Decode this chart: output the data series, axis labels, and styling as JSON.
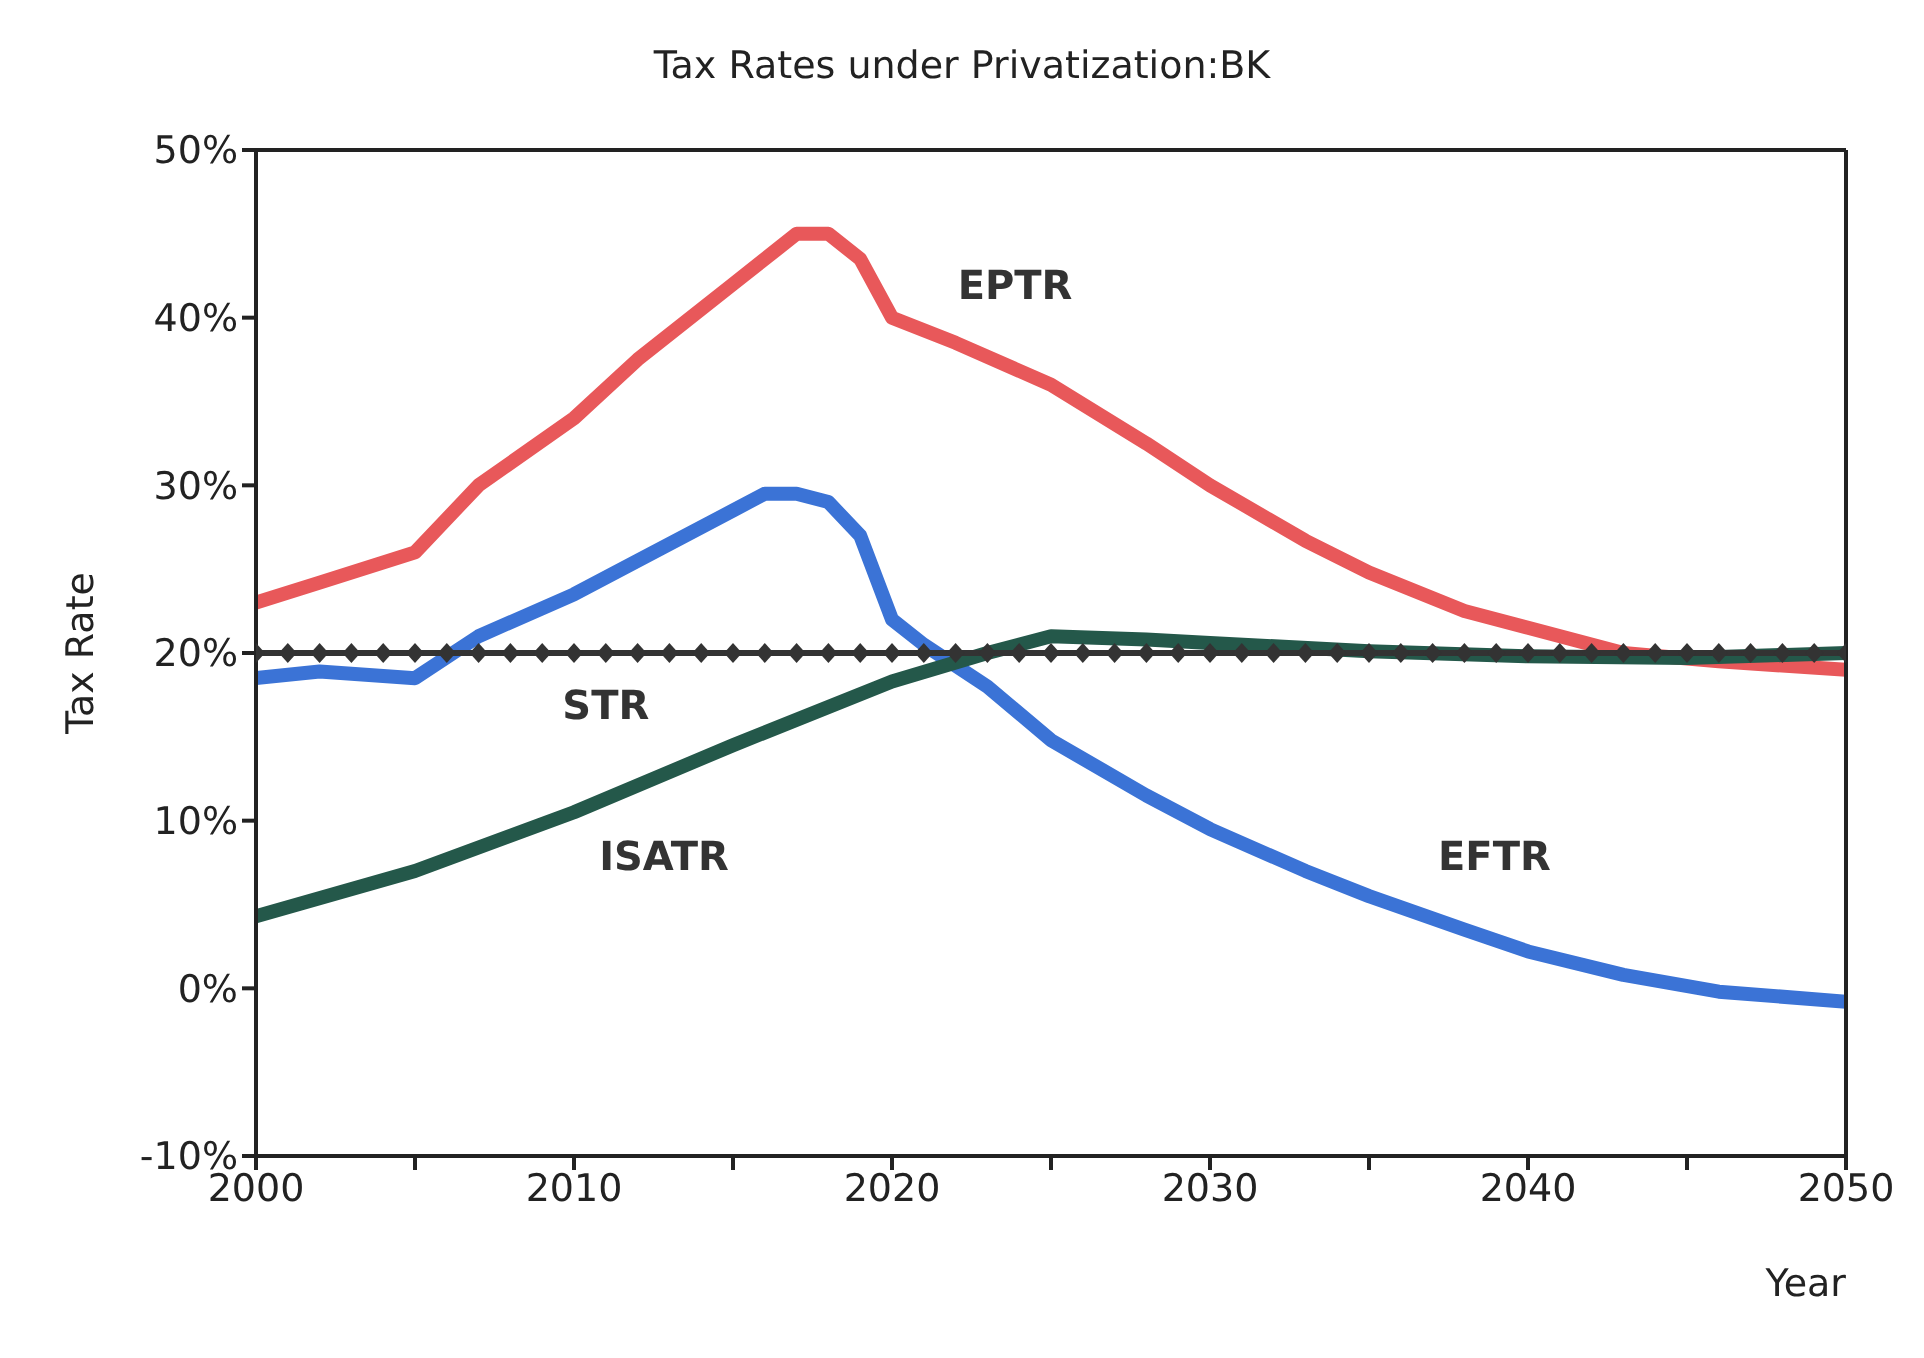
{
  "chart_data": {
    "type": "line",
    "title": "Tax Rates under Privatization:BK",
    "xlabel": "Year",
    "ylabel": "Tax Rate",
    "xlim": [
      2000,
      2050
    ],
    "xticks": [
      2000,
      {
        "value": 2005,
        "label": null
      },
      2010,
      {
        "value": 2015,
        "label": null
      },
      2020,
      {
        "value": 2025,
        "label": null
      },
      2030,
      {
        "value": 2035,
        "label": null
      },
      2040,
      {
        "value": 2045,
        "label": null
      },
      2050
    ],
    "ylim": [
      -10,
      50
    ],
    "yticks": [
      {
        "value": -10,
        "label": "-10%"
      },
      {
        "value": 0,
        "label": "0%"
      },
      {
        "value": 10,
        "label": "10%"
      },
      {
        "value": 20,
        "label": "20%"
      },
      {
        "value": 30,
        "label": "30%"
      },
      {
        "value": 40,
        "label": "40%"
      },
      {
        "value": 50,
        "label": "50%"
      }
    ],
    "grid": false,
    "legend": false,
    "marker": "none",
    "line_style": "solid",
    "series": [
      {
        "name": "EPTR",
        "color": "#e8585a",
        "x": [
          2000,
          2002,
          2005,
          2007,
          2010,
          2012,
          2015,
          2017,
          2018,
          2019,
          2020,
          2022,
          2025,
          2028,
          2030,
          2033,
          2035,
          2038,
          2040,
          2043,
          2046,
          2050
        ],
        "values": [
          23,
          24.2,
          26,
          30,
          34,
          37.5,
          42,
          45,
          45,
          43.5,
          40,
          38.5,
          36,
          32.5,
          30,
          26.7,
          24.8,
          22.5,
          21.5,
          20,
          19.5,
          19
        ]
      },
      {
        "name": "EFTR",
        "color": "#3b73d6",
        "x": [
          2000,
          2002,
          2005,
          2007,
          2010,
          2012,
          2015,
          2016,
          2017,
          2018,
          2019,
          2020,
          2021,
          2023,
          2025,
          2028,
          2030,
          2033,
          2035,
          2038,
          2040,
          2043,
          2046,
          2050
        ],
        "values": [
          18.5,
          18.9,
          18.5,
          21,
          23.5,
          25.5,
          28.5,
          29.5,
          29.5,
          29,
          27,
          22,
          20.5,
          18,
          14.8,
          11.5,
          9.5,
          7,
          5.5,
          3.5,
          2.2,
          0.8,
          -0.2,
          -0.8
        ]
      },
      {
        "name": "ISATR",
        "color": "#24584a",
        "x": [
          2000,
          2005,
          2010,
          2015,
          2020,
          2023,
          2025,
          2028,
          2030,
          2035,
          2040,
          2045,
          2050
        ],
        "values": [
          4.3,
          7,
          10.5,
          14.5,
          18.3,
          20,
          21,
          20.8,
          20.6,
          20.1,
          19.8,
          19.7,
          20
        ]
      },
      {
        "name": "STR",
        "color": "#333333",
        "marker": "diamond",
        "x": [
          2000,
          2001,
          2002,
          2003,
          2004,
          2005,
          2006,
          2007,
          2008,
          2009,
          2010,
          2011,
          2012,
          2013,
          2014,
          2015,
          2016,
          2017,
          2018,
          2019,
          2020,
          2021,
          2022,
          2023,
          2024,
          2025,
          2026,
          2027,
          2028,
          2029,
          2030,
          2031,
          2032,
          2033,
          2034,
          2035,
          2036,
          2037,
          2038,
          2039,
          2040,
          2041,
          2042,
          2043,
          2044,
          2045,
          2046,
          2047,
          2048,
          2049,
          2050
        ],
        "values": [
          20,
          20,
          20,
          20,
          20,
          20,
          20,
          20,
          20,
          20,
          20,
          20,
          20,
          20,
          20,
          20,
          20,
          20,
          20,
          20,
          20,
          20,
          20,
          20,
          20,
          20,
          20,
          20,
          20,
          20,
          20,
          20,
          20,
          20,
          20,
          20,
          20,
          20,
          20,
          20,
          20,
          20,
          20,
          20,
          20,
          20,
          20,
          20,
          20,
          20,
          20
        ]
      }
    ]
  }
}
